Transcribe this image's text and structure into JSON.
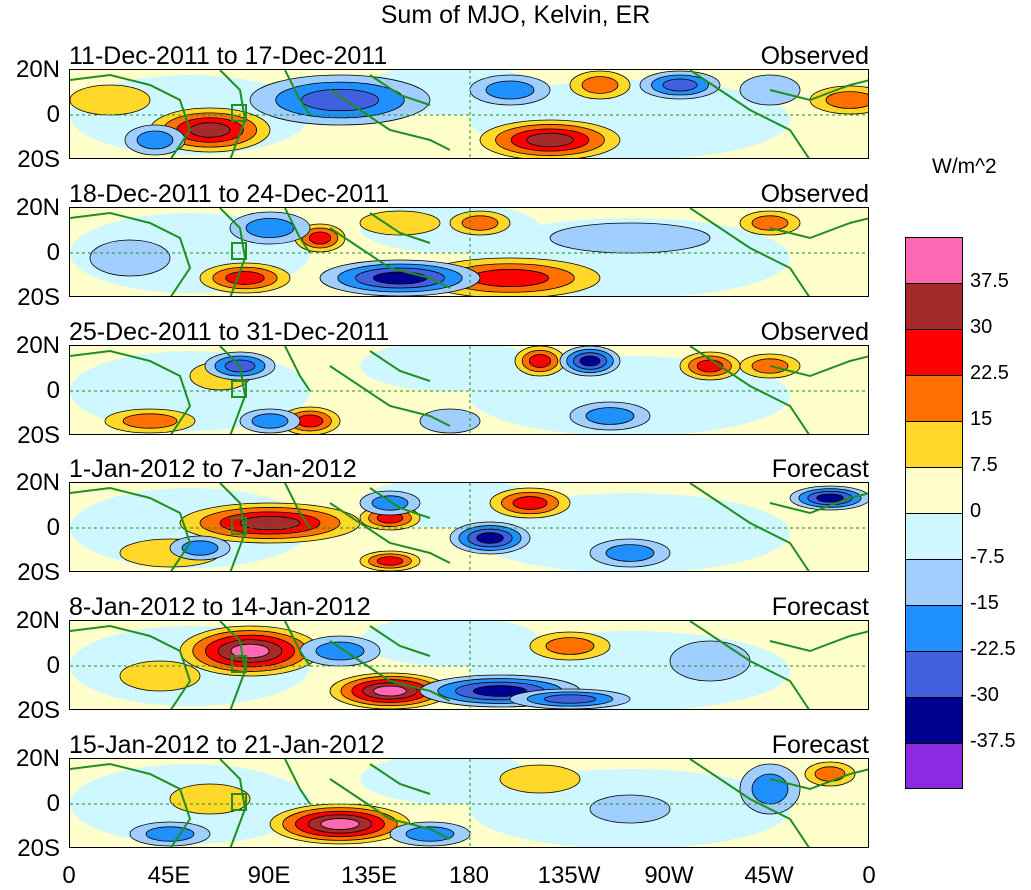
{
  "title": "Sum of MJO, Kelvin, ER",
  "units": "W/m^2",
  "y_ticks": [
    "20N",
    "0",
    "20S"
  ],
  "x_ticks": [
    "0",
    "45E",
    "90E",
    "135E",
    "180",
    "135W",
    "90W",
    "45W",
    "0"
  ],
  "panels": [
    {
      "dates": "11-Dec-2011 to 17-Dec-2011",
      "kind": "Observed"
    },
    {
      "dates": "18-Dec-2011 to 24-Dec-2011",
      "kind": "Observed"
    },
    {
      "dates": "25-Dec-2011 to 31-Dec-2011",
      "kind": "Observed"
    },
    {
      "dates": "1-Jan-2012 to 7-Jan-2012",
      "kind": "Forecast"
    },
    {
      "dates": "8-Jan-2012 to 14-Jan-2012",
      "kind": "Forecast"
    },
    {
      "dates": "15-Jan-2012 to 21-Jan-2012",
      "kind": "Forecast"
    }
  ],
  "colorbar": {
    "labels": [
      "37.5",
      "30",
      "22.5",
      "15",
      "7.5",
      "0",
      "-7.5",
      "-15",
      "-22.5",
      "-30",
      "-37.5"
    ],
    "colors": [
      "#ff69b4",
      "#a52a2a",
      "#ff0000",
      "#ff7000",
      "#ffd829",
      "#ffffcc",
      "#cff7ff",
      "#a0cfff",
      "#2090ff",
      "#4060e0",
      "#000090",
      "#8a2be2"
    ]
  },
  "colors": {
    "land_outline": "#1f8f1f",
    "frame": "#000000"
  }
}
